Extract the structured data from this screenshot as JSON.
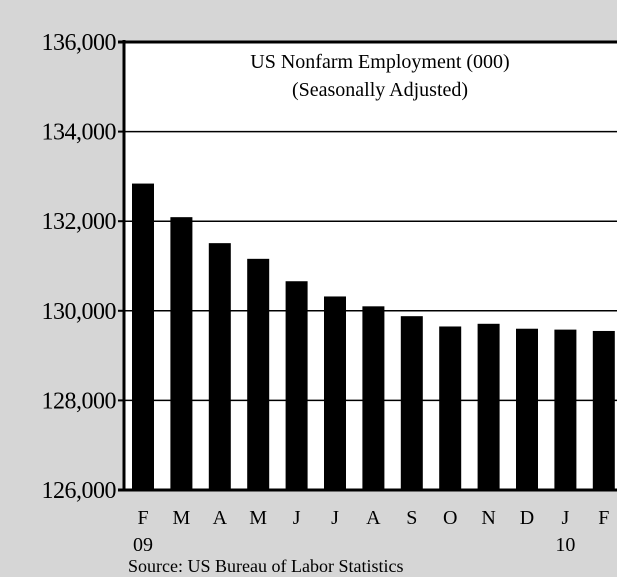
{
  "chart_data": {
    "type": "bar",
    "title": "US Nonfarm Employment (000)",
    "subtitle": "(Seasonally Adjusted)",
    "source": "Source: US Bureau of Labor Statistics",
    "categories": [
      "F",
      "M",
      "A",
      "M",
      "J",
      "J",
      "A",
      "S",
      "O",
      "N",
      "D",
      "J",
      "F"
    ],
    "year_labels": [
      "09",
      "",
      "",
      "",
      "",
      "",
      "",
      "",
      "",
      "",
      "",
      "10",
      ""
    ],
    "values": [
      132840,
      132090,
      131510,
      131160,
      130660,
      130320,
      130100,
      129880,
      129650,
      129710,
      129600,
      129580,
      129550
    ],
    "ylim": [
      126000,
      136000
    ],
    "yticks": [
      126000,
      128000,
      130000,
      132000,
      134000,
      136000
    ],
    "ytick_labels": [
      "126,000",
      "128,000",
      "130,000",
      "132,000",
      "134,000",
      "136,000"
    ],
    "grid": true,
    "colors": {
      "bars": "#000000",
      "plot_background": "#ffffff",
      "page_background": "#d6d6d6"
    }
  }
}
